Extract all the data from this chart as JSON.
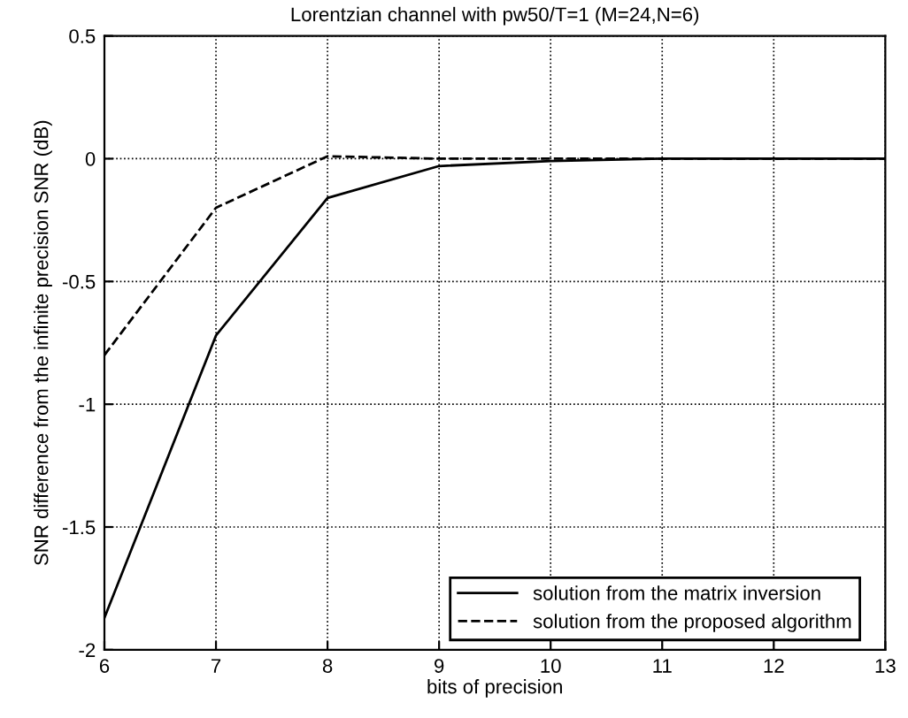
{
  "chart_data": {
    "type": "line",
    "title": "Lorentzian channel with pw50/T=1 (M=24,N=6)",
    "xlabel": "bits of precision",
    "ylabel": "SNR difference from the infinite precision SNR (dB)",
    "x": [
      6,
      7,
      8,
      9,
      10,
      11,
      12,
      13
    ],
    "series": [
      {
        "name": "solution from the matrix inversion",
        "color": "#000000",
        "line_style": "solid",
        "values": [
          -1.87,
          -0.72,
          -0.16,
          -0.03,
          -0.01,
          0,
          0,
          0
        ]
      },
      {
        "name": "solution from the proposed algorithm",
        "color": "#000000",
        "line_style": "dashed",
        "values": [
          -0.8,
          -0.2,
          0.01,
          0,
          0,
          0,
          0,
          0
        ]
      }
    ],
    "xlim": [
      6,
      13
    ],
    "ylim": [
      -2,
      0.5
    ],
    "xticks": [
      6,
      7,
      8,
      9,
      10,
      11,
      12,
      13
    ],
    "yticks": [
      -2,
      -1.5,
      -1,
      -0.5,
      0,
      0.5
    ],
    "grid": true,
    "legend": "bottom right",
    "marker": "none"
  }
}
